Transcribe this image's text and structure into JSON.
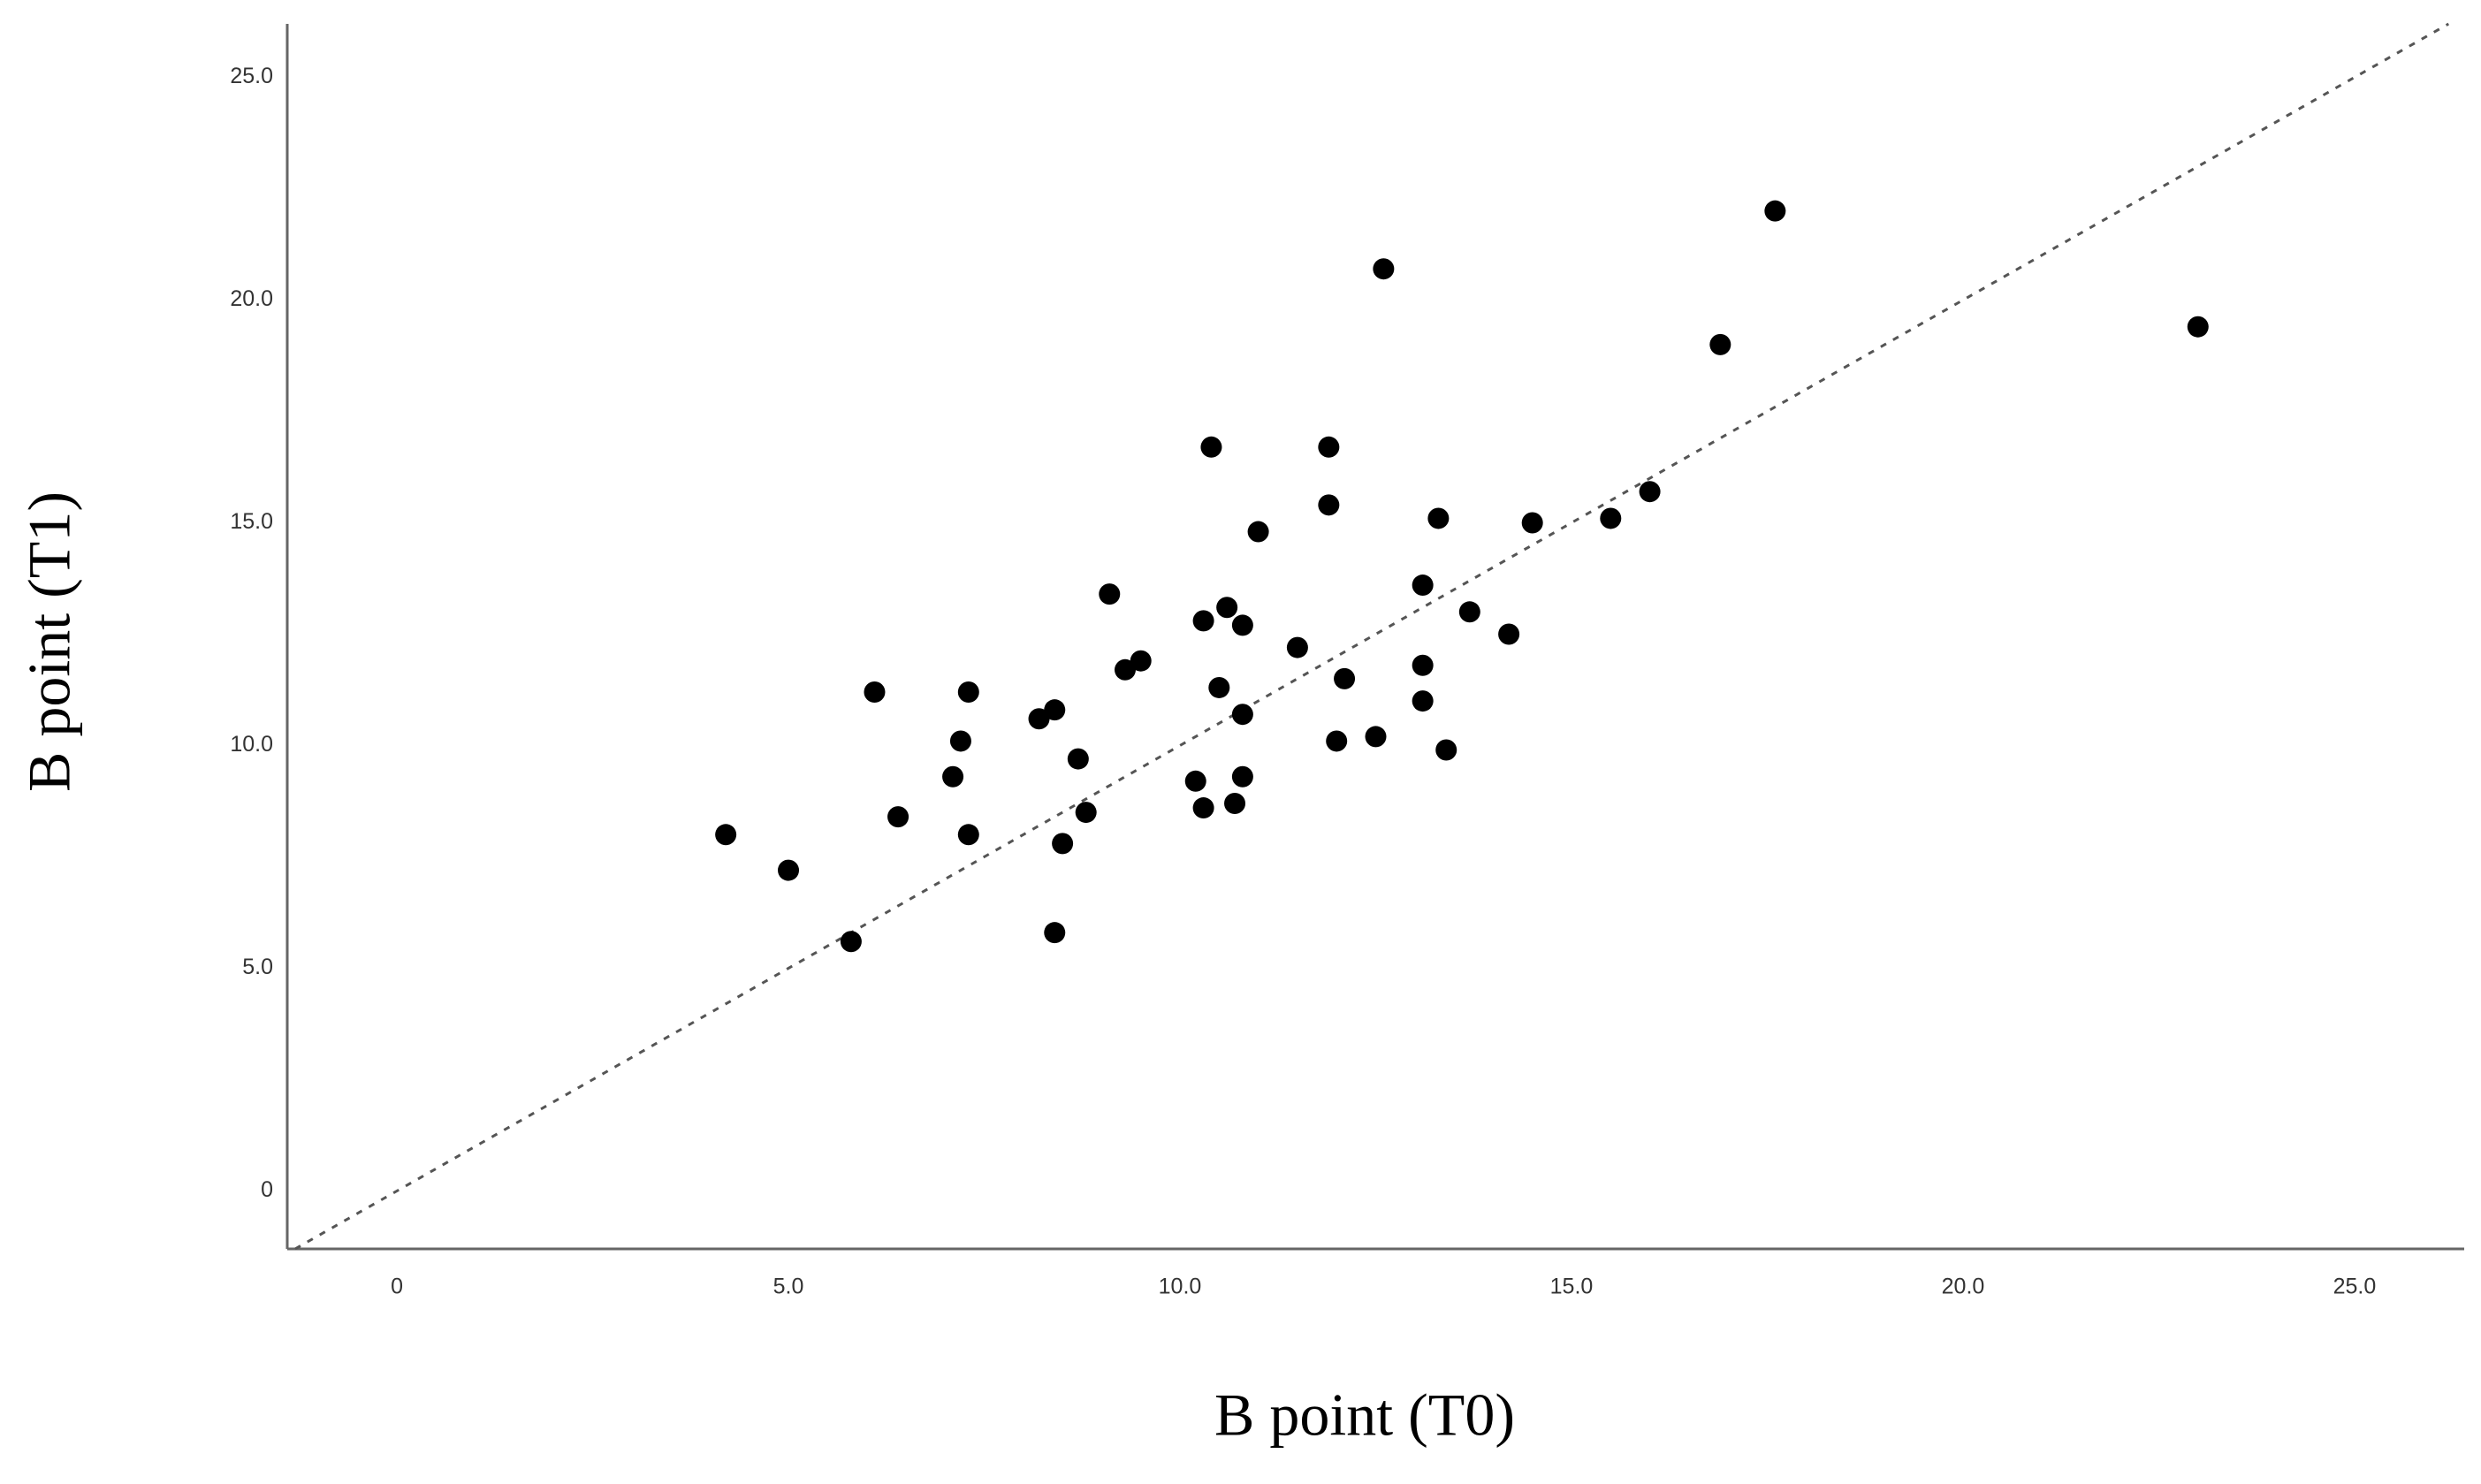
{
  "chart_data": {
    "type": "scatter",
    "x_label": "B point (T0)",
    "y_label": "B point (T1)",
    "x": [
      4.2,
      5.0,
      5.8,
      6.1,
      6.4,
      7.1,
      7.2,
      7.3,
      7.3,
      8.2,
      8.4,
      8.4,
      8.5,
      8.7,
      8.8,
      9.1,
      9.3,
      9.5,
      10.2,
      10.3,
      10.3,
      10.4,
      10.5,
      10.6,
      10.7,
      10.8,
      10.8,
      10.8,
      11.0,
      11.5,
      11.9,
      11.9,
      12.0,
      12.1,
      12.5,
      12.6,
      13.1,
      13.1,
      13.1,
      13.3,
      13.4,
      13.7,
      14.2,
      14.5,
      15.5,
      16.0,
      16.9,
      17.6,
      23.0
    ],
    "values": [
      8.0,
      7.2,
      5.6,
      11.2,
      8.4,
      9.3,
      10.1,
      11.2,
      8.0,
      10.6,
      10.8,
      5.8,
      7.8,
      9.7,
      8.5,
      13.4,
      11.7,
      11.9,
      9.2,
      8.6,
      12.8,
      16.7,
      11.3,
      13.1,
      8.7,
      9.3,
      10.7,
      12.7,
      14.8,
      12.2,
      16.7,
      15.4,
      10.1,
      11.5,
      10.2,
      20.7,
      13.6,
      11.8,
      11.0,
      15.1,
      9.9,
      13.0,
      12.5,
      15.0,
      15.1,
      15.7,
      19.0,
      22.0,
      19.4
    ],
    "color": "#000000",
    "xlim": [
      -1.4,
      26.4
    ],
    "ylim": [
      -1.3,
      26.2
    ],
    "xticks": [
      0,
      {
        "value": 5,
        "label": "5.0"
      },
      {
        "value": 10,
        "label": "10.0"
      },
      {
        "value": 15,
        "label": "15.0"
      },
      {
        "value": 20,
        "label": "20.0"
      },
      {
        "value": 25,
        "label": "25.0"
      }
    ],
    "yticks": [
      0,
      {
        "value": 5,
        "label": "5.0"
      },
      {
        "value": 10,
        "label": "10.0"
      },
      {
        "value": 15,
        "label": "15.0"
      },
      {
        "value": 20,
        "label": "20.0"
      },
      {
        "value": 25,
        "label": "25.0"
      }
    ],
    "identity_line": true,
    "grid": false
  }
}
